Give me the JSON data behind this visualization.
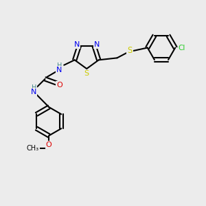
{
  "bg_color": "#ececec",
  "atom_colors": {
    "C": "#000000",
    "N": "#0000ee",
    "O": "#dd0000",
    "S": "#cccc00",
    "Cl": "#22cc22",
    "H": "#448888"
  },
  "bond_color": "#000000",
  "figsize": [
    3.0,
    3.0
  ],
  "dpi": 100
}
